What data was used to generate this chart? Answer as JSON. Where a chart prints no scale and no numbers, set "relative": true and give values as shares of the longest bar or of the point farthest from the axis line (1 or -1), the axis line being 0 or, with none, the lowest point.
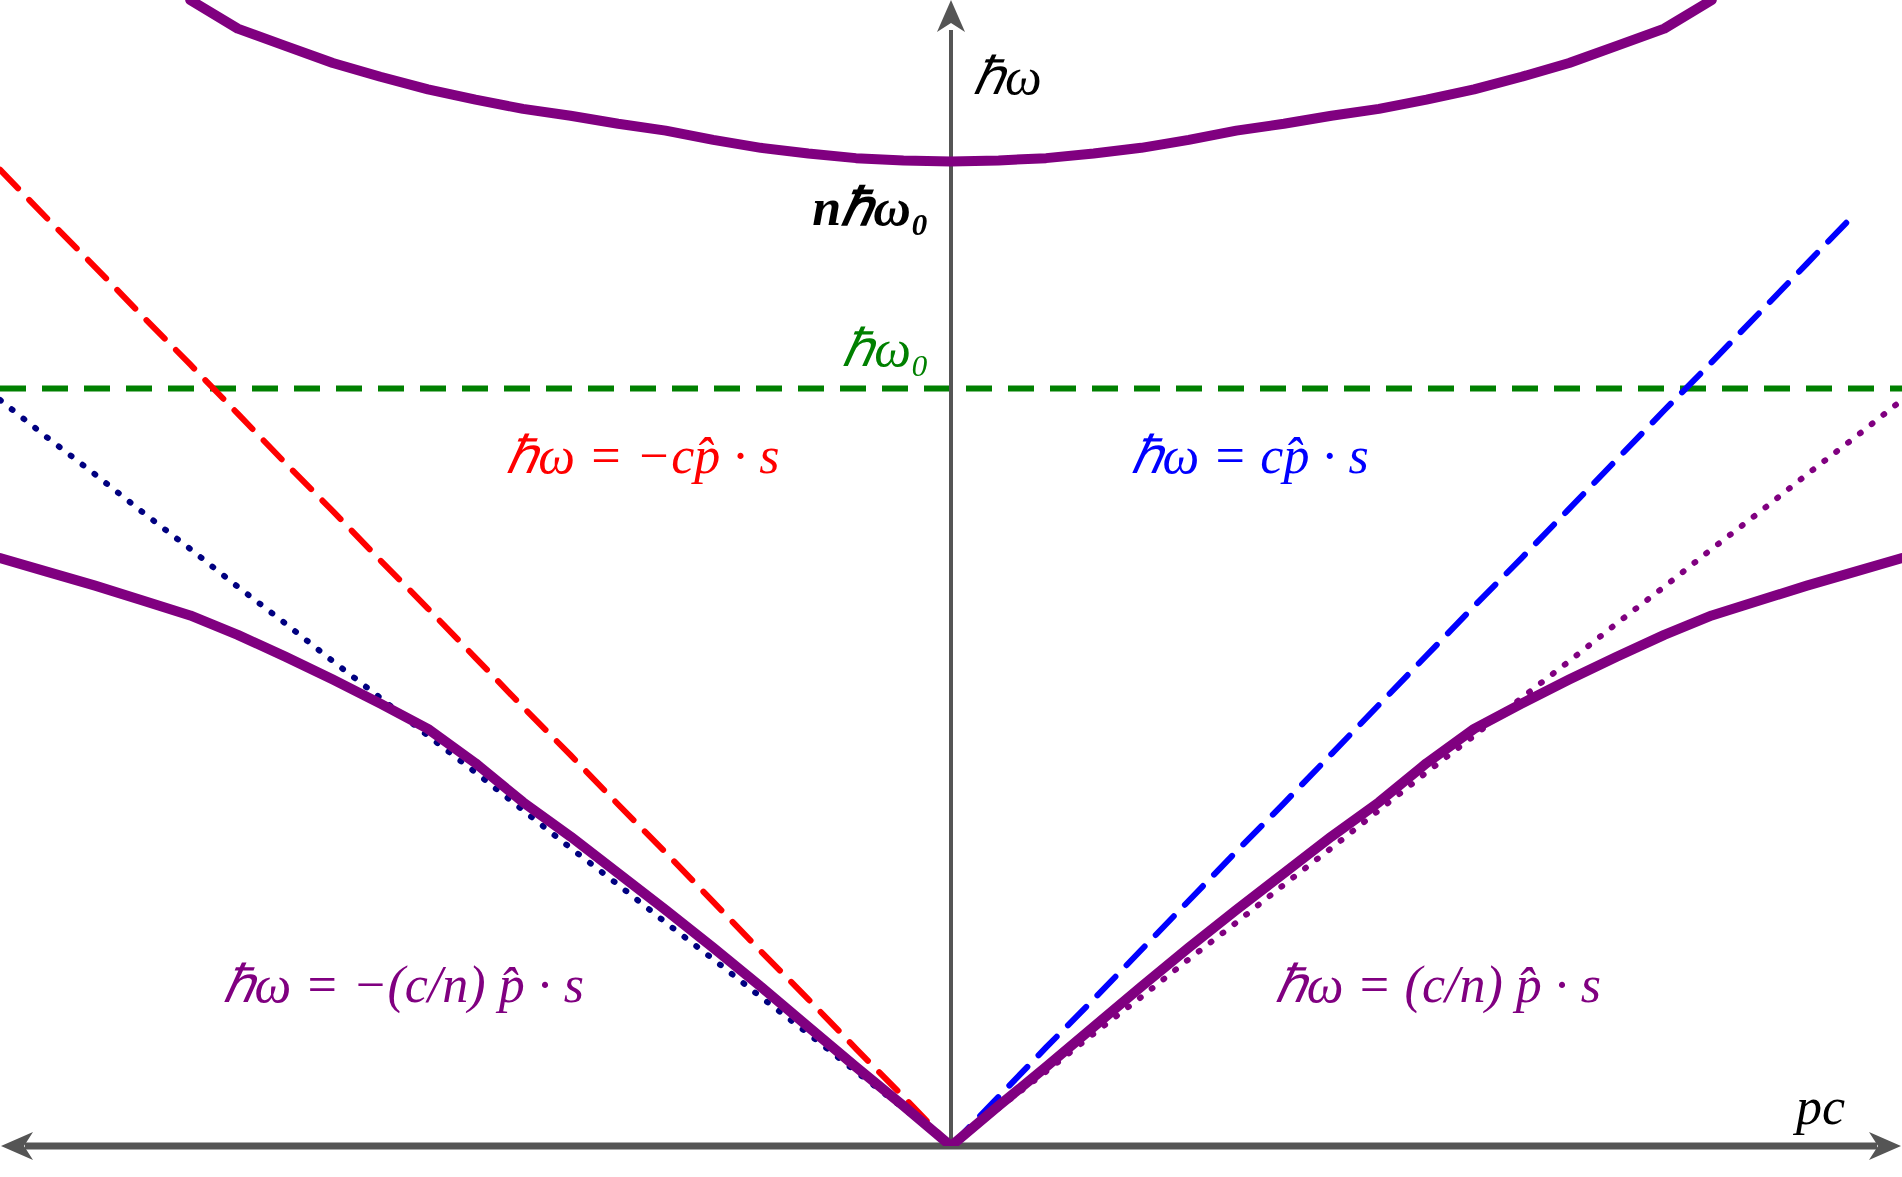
{
  "chart_data": {
    "type": "line",
    "relative": true,
    "xlabel": "pc",
    "ylabel": "ℏω",
    "legend": false,
    "marker": "none",
    "categories": [
      null,
      null,
      null,
      null,
      null,
      null,
      null,
      null,
      null,
      null,
      null,
      null,
      null,
      null,
      null,
      null,
      null,
      null,
      null,
      null,
      null,
      null,
      null,
      null,
      null,
      null,
      null,
      null,
      null,
      null,
      null,
      null,
      null,
      null,
      null,
      null,
      null,
      null,
      null,
      null,
      null
    ],
    "series": [
      {
        "color": "#800080",
        "line_style": "solid",
        "values": [
          null,
          null,
          null,
          null,
          1.0,
          0.975,
          0.96,
          0.945,
          0.933,
          0.922,
          0.913,
          0.905,
          0.899,
          0.892,
          0.886,
          0.878,
          0.871,
          0.866,
          0.862,
          0.86,
          0.859,
          0.86,
          0.862,
          0.866,
          0.871,
          0.878,
          0.886,
          0.892,
          0.899,
          0.905,
          0.913,
          0.922,
          0.933,
          0.945,
          0.96,
          0.975,
          1.0,
          null,
          null,
          null,
          null
        ]
      },
      {
        "color": "#800080",
        "line_style": "solid",
        "values": [
          0.513,
          0.501,
          0.489,
          0.476,
          0.463,
          0.446,
          0.427,
          0.407,
          0.386,
          0.364,
          0.334,
          0.3,
          0.27,
          0.238,
          0.206,
          0.173,
          0.139,
          0.104,
          0.069,
          0.035,
          0,
          0.035,
          0.069,
          0.104,
          0.139,
          0.173,
          0.206,
          0.238,
          0.27,
          0.3,
          0.334,
          0.364,
          0.386,
          0.407,
          0.427,
          0.446,
          0.463,
          0.476,
          0.489,
          0.501,
          0.513
        ]
      },
      {
        "color": "#ff0000",
        "line_style": "dashed",
        "values": [
          0.852,
          0.809,
          0.767,
          0.724,
          0.682,
          0.639,
          0.596,
          0.554,
          0.511,
          0.469,
          0.426,
          0.383,
          0.341,
          0.298,
          0.256,
          0.213,
          0.17,
          0.128,
          0.085,
          0.043,
          0,
          null,
          null,
          null,
          null,
          null,
          null,
          null,
          null,
          null,
          null,
          null,
          null,
          null,
          null,
          null,
          null,
          null,
          null,
          null,
          null
        ]
      },
      {
        "color": "#0000ff",
        "line_style": "dashed",
        "values": [
          null,
          null,
          null,
          null,
          null,
          null,
          null,
          null,
          null,
          null,
          null,
          null,
          null,
          null,
          null,
          null,
          null,
          null,
          null,
          null,
          0,
          0.043,
          0.086,
          0.128,
          0.171,
          0.214,
          0.257,
          0.299,
          0.342,
          0.385,
          0.428,
          0.471,
          0.513,
          0.556,
          0.599,
          0.642,
          0.684,
          0.727,
          0.77,
          0.813,
          null
        ]
      },
      {
        "color": "#000080",
        "line_style": "dotted",
        "values": [
          0.651,
          0.618,
          0.586,
          0.553,
          0.521,
          0.488,
          0.456,
          0.423,
          0.391,
          0.358,
          0.326,
          0.293,
          0.26,
          0.228,
          0.195,
          0.163,
          0.13,
          0.098,
          0.065,
          0.033,
          0,
          null,
          null,
          null,
          null,
          null,
          null,
          null,
          null,
          null,
          null,
          null,
          null,
          null,
          null,
          null,
          null,
          null,
          null,
          null,
          null
        ]
      },
      {
        "color": "#800080",
        "line_style": "dotted",
        "values": [
          null,
          null,
          null,
          null,
          null,
          null,
          null,
          null,
          null,
          null,
          null,
          null,
          null,
          null,
          null,
          null,
          null,
          null,
          null,
          null,
          0,
          0.033,
          0.065,
          0.098,
          0.13,
          0.163,
          0.195,
          0.228,
          0.26,
          0.293,
          0.326,
          0.358,
          0.391,
          0.423,
          0.456,
          0.488,
          0.521,
          0.553,
          0.586,
          0.618,
          0.651
        ]
      }
    ],
    "ref_lines": [
      {
        "axis": "y",
        "value": 0.661,
        "label": "ℏω₀",
        "color": "#008000",
        "line_style": "dashed"
      }
    ],
    "annotations": [
      "nℏω₀",
      "ℏω = −cp̂ · s",
      "ℏω = cp̂ · s",
      "ℏω = −(c/n) p̂ · s",
      "ℏω = (c/n) p̂ · s"
    ]
  }
}
